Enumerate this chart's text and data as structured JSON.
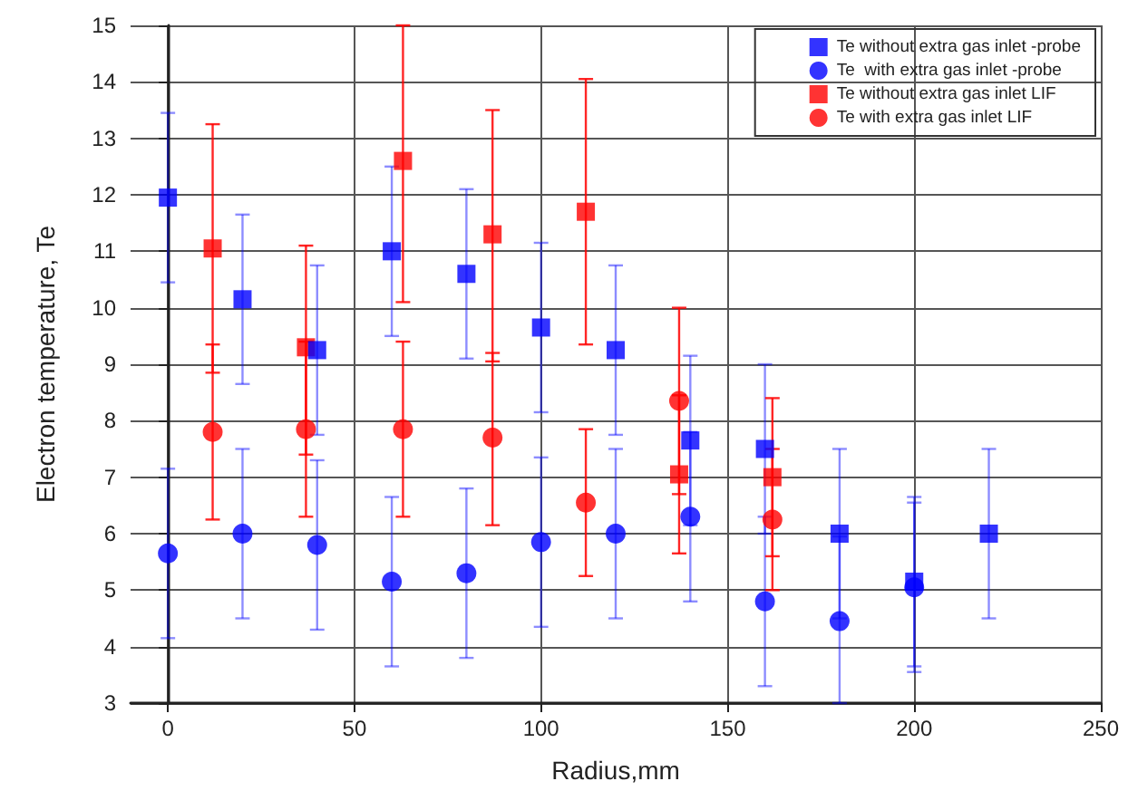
{
  "chart_data": {
    "type": "scatter",
    "xlabel": "Radius,mm",
    "ylabel": "Electron temperature, Te",
    "xlim": [
      -10,
      250
    ],
    "xticks": [
      0,
      50,
      100,
      150,
      200,
      250
    ],
    "ylim": [
      3,
      15
    ],
    "yticks": [
      3,
      4,
      5,
      6,
      7,
      8,
      9,
      10,
      11,
      12,
      13,
      14,
      15
    ],
    "grid": true,
    "legend": "top right",
    "series": [
      {
        "name": "Te without extra gas inlet -probe",
        "color": "#0000ff",
        "marker": "square",
        "x": [
          0,
          20,
          40,
          60,
          80,
          100,
          120,
          140,
          160,
          180,
          200,
          220
        ],
        "values": [
          11.95,
          10.15,
          9.25,
          11.0,
          10.6,
          9.65,
          9.25,
          7.65,
          7.5,
          6.0,
          5.15,
          6.0
        ],
        "errors": [
          [
            10.45,
            13.45
          ],
          [
            8.65,
            11.65
          ],
          [
            7.75,
            10.75
          ],
          [
            9.5,
            12.5
          ],
          [
            9.1,
            12.1
          ],
          [
            8.15,
            11.15
          ],
          [
            7.75,
            10.75
          ],
          [
            6.15,
            9.15
          ],
          [
            6.0,
            9.0
          ],
          [
            4.5,
            7.5
          ],
          [
            3.65,
            6.65
          ],
          [
            4.5,
            7.5
          ]
        ]
      },
      {
        "name": "Te  with extra gas inlet -probe",
        "color": "#0000ff",
        "marker": "circle",
        "x": [
          0,
          20,
          40,
          60,
          80,
          100,
          120,
          140,
          160,
          180,
          200
        ],
        "values": [
          5.65,
          6.0,
          5.8,
          5.15,
          5.3,
          5.85,
          6.0,
          6.3,
          4.8,
          4.45,
          5.05
        ],
        "errors": [
          [
            4.15,
            7.15
          ],
          [
            4.5,
            7.5
          ],
          [
            4.3,
            7.3
          ],
          [
            3.65,
            6.65
          ],
          [
            3.8,
            6.8
          ],
          [
            4.35,
            7.35
          ],
          [
            4.5,
            7.5
          ],
          [
            4.8,
            7.8
          ],
          [
            3.3,
            6.3
          ],
          [
            3.0,
            5.95
          ],
          [
            3.55,
            6.55
          ]
        ]
      },
      {
        "name": "Te without extra gas inlet LIF",
        "color": "#ff0000",
        "marker": "square",
        "x": [
          12,
          37,
          63,
          87,
          112,
          137,
          162
        ],
        "values": [
          11.05,
          9.3,
          12.6,
          11.3,
          11.7,
          7.05,
          7.0
        ],
        "errors": [
          [
            8.85,
            13.25
          ],
          [
            7.4,
            11.1
          ],
          [
            10.1,
            15.0
          ],
          [
            9.05,
            13.5
          ],
          [
            9.35,
            14.05
          ],
          [
            5.65,
            8.45
          ],
          [
            5.6,
            8.4
          ]
        ]
      },
      {
        "name": "Te with extra gas inlet LIF",
        "color": "#ff0000",
        "marker": "circle",
        "x": [
          12,
          37,
          63,
          87,
          112,
          137,
          162
        ],
        "values": [
          7.8,
          7.85,
          7.85,
          7.7,
          6.55,
          8.35,
          6.25
        ],
        "errors": [
          [
            6.25,
            9.35
          ],
          [
            6.3,
            9.4
          ],
          [
            6.3,
            9.4
          ],
          [
            6.15,
            9.2
          ],
          [
            5.25,
            7.85
          ],
          [
            6.7,
            10.0
          ],
          [
            5.0,
            7.5
          ]
        ]
      }
    ]
  }
}
